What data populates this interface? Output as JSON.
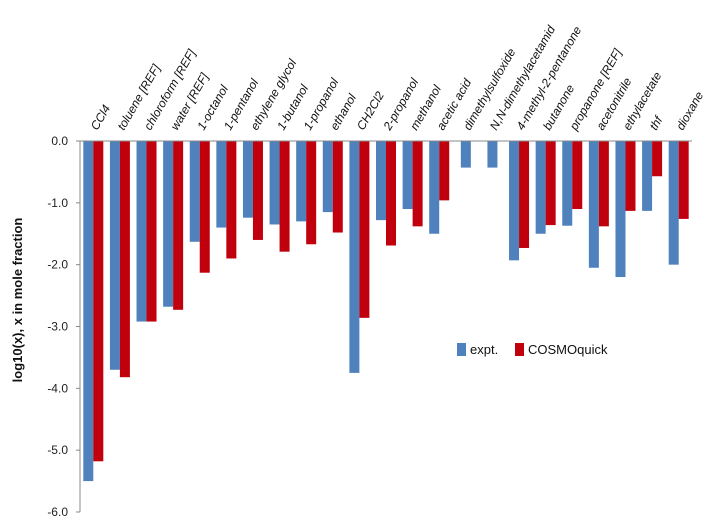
{
  "chart_data": {
    "type": "bar",
    "title": "",
    "xlabel": "",
    "ylabel": "log10(x), x in mole fraction",
    "ylim": [
      -6.0,
      0.0
    ],
    "yticks": [
      "0.0",
      "-1.0",
      "-2.0",
      "-3.0",
      "-4.0",
      "-5.0",
      "-6.0"
    ],
    "categories": [
      "CCl4",
      "toluene [REF]",
      "chloroform [REF]",
      "water [REF]",
      "1-octanol",
      "1-pentanol",
      "ethylene glycol",
      "1-butanol",
      "1-propanol",
      "ethanol",
      "CH2Cl2",
      "2-propanol",
      "methanol",
      "acetic acid",
      "dimethylsulfoxide",
      "N,N-dimethylacetamid",
      "4-methyl-2-pentanone",
      "butanone",
      "propanone [REF]",
      "acetonitrile",
      "ethylacetate",
      "thf",
      "dioxane"
    ],
    "series": [
      {
        "name": "expt.",
        "color": "#4f81bd",
        "values": [
          -5.5,
          -3.7,
          -2.92,
          -2.68,
          -1.63,
          -1.4,
          -1.24,
          -1.35,
          -1.3,
          -1.15,
          -3.75,
          -1.28,
          -1.1,
          -1.5,
          -0.43,
          -0.43,
          -1.93,
          -1.5,
          -1.37,
          -2.05,
          -2.2,
          -1.13,
          -2.0
        ]
      },
      {
        "name": "COSMOquick",
        "color": "#c0000c",
        "values": [
          -5.18,
          -3.82,
          -2.92,
          -2.73,
          -2.13,
          -1.9,
          -1.6,
          -1.79,
          -1.67,
          -1.48,
          -2.86,
          -1.69,
          -1.38,
          -0.96,
          null,
          null,
          -1.73,
          -1.36,
          -1.1,
          -1.38,
          -1.13,
          -0.57,
          -1.26
        ]
      }
    ],
    "legend_position": "right-middle"
  }
}
